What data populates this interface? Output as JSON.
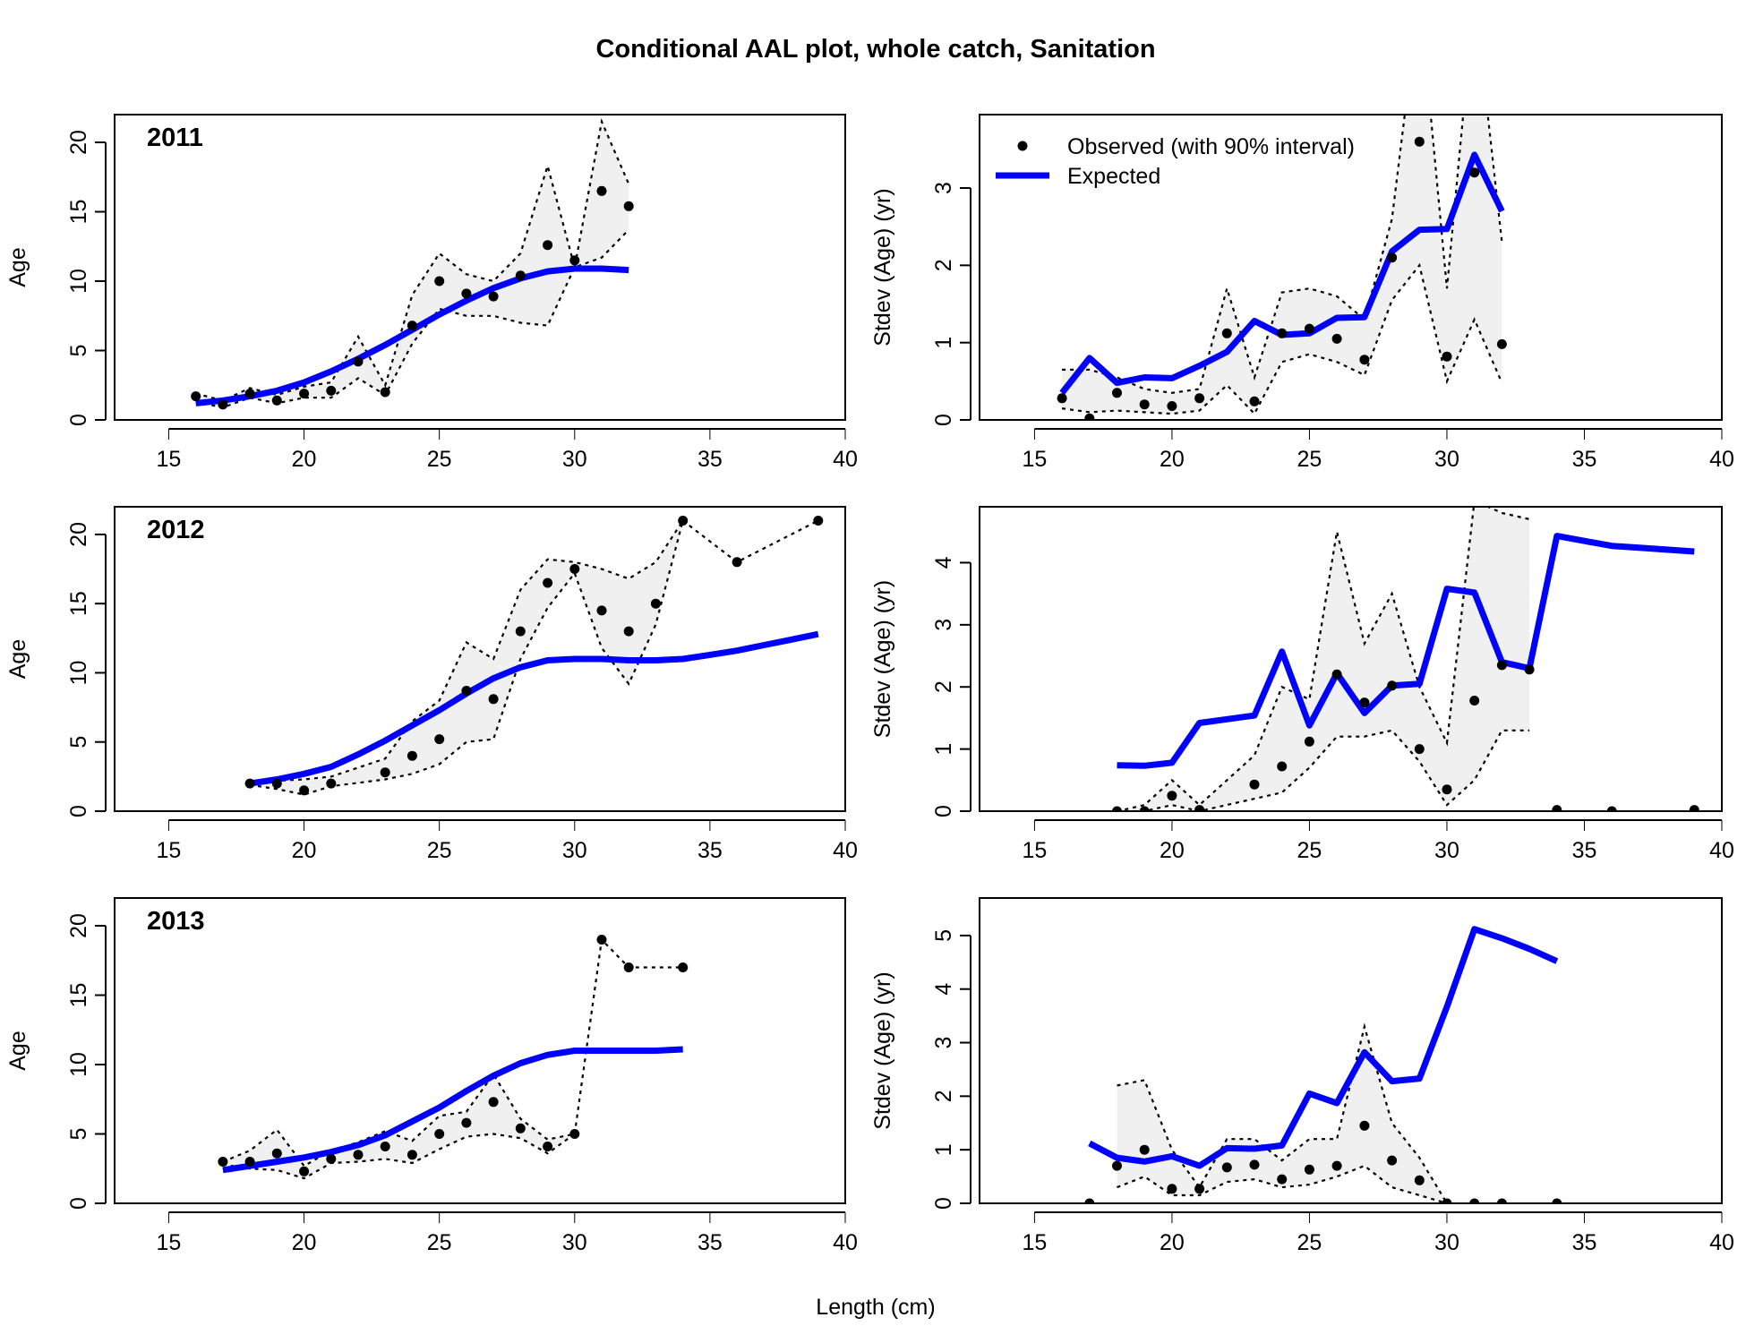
{
  "chart_data": {
    "type": "line",
    "title": "Conditional AAL plot, whole catch, Sanitation",
    "xlabel": "Length (cm)",
    "xlim": [
      13,
      40
    ],
    "xticks": [
      "15",
      "20",
      "25",
      "30",
      "35",
      "40"
    ],
    "legend": {
      "position": "top-left",
      "observed_label": "Observed (with 90% interval)",
      "expected_label": "Expected"
    },
    "colors": {
      "expected": "#0000ff",
      "observed": "#000000",
      "band": "#f0f0f0"
    },
    "panels": [
      {
        "year": "2011",
        "ylabel": "Age",
        "ylim": [
          0,
          22
        ],
        "yticks": [
          "0",
          "5",
          "10",
          "15",
          "20"
        ],
        "show_year": true,
        "show_legend": false,
        "obs_x": [
          16,
          17,
          18,
          19,
          20,
          21,
          22,
          23,
          24,
          25,
          26,
          27,
          28,
          29,
          30,
          31,
          32
        ],
        "obs_y": [
          1.7,
          1.1,
          1.9,
          1.4,
          1.9,
          2.1,
          4.2,
          2.0,
          6.8,
          10.0,
          9.1,
          8.9,
          10.4,
          12.6,
          11.5,
          16.5,
          15.4
        ],
        "band_x": [
          16,
          17,
          18,
          19,
          20,
          21,
          22,
          23,
          24,
          25,
          26,
          27,
          28,
          29,
          30,
          31,
          32
        ],
        "upper": [
          1.9,
          1.4,
          2.3,
          1.8,
          2.4,
          2.7,
          6.0,
          2.5,
          9.0,
          12.0,
          10.5,
          10.0,
          12.0,
          18.3,
          11.0,
          21.5,
          17.0
        ],
        "lower": [
          1.3,
          0.9,
          1.6,
          1.2,
          1.6,
          1.6,
          3.0,
          1.8,
          5.5,
          8.0,
          7.5,
          7.5,
          7.0,
          6.8,
          11.0,
          11.7,
          13.7
        ],
        "exp_x": [
          16,
          17,
          18,
          19,
          20,
          21,
          22,
          23,
          24,
          25,
          26,
          27,
          28,
          29,
          30,
          31,
          32
        ],
        "exp_y": [
          1.2,
          1.4,
          1.7,
          2.1,
          2.7,
          3.5,
          4.4,
          5.4,
          6.5,
          7.6,
          8.6,
          9.5,
          10.2,
          10.7,
          10.9,
          10.9,
          10.8
        ]
      },
      {
        "year": "2011",
        "ylabel": "Stdev (Age) (yr)",
        "ylim": [
          0,
          3.95
        ],
        "yticks": [
          "0",
          "1",
          "2",
          "3"
        ],
        "show_year": false,
        "show_legend": true,
        "obs_x": [
          16,
          17,
          18,
          19,
          20,
          21,
          22,
          23,
          24,
          25,
          26,
          27,
          28,
          29,
          30,
          31,
          32
        ],
        "obs_y": [
          0.28,
          0.02,
          0.35,
          0.2,
          0.18,
          0.28,
          1.12,
          0.24,
          1.12,
          1.18,
          1.05,
          0.78,
          2.1,
          3.6,
          0.82,
          3.2,
          0.98
        ],
        "band_x": [
          16,
          17,
          18,
          19,
          20,
          21,
          22,
          23,
          24,
          25,
          26,
          27,
          28,
          29,
          30,
          31,
          32
        ],
        "upper": [
          0.65,
          0.65,
          0.55,
          0.4,
          0.35,
          0.4,
          1.7,
          0.55,
          1.65,
          1.7,
          1.6,
          1.3,
          2.6,
          5.5,
          1.7,
          5.5,
          2.3
        ],
        "lower": [
          0.15,
          0.1,
          0.12,
          0.1,
          0.08,
          0.12,
          0.45,
          0.08,
          0.75,
          0.85,
          0.75,
          0.58,
          1.55,
          2.0,
          0.5,
          1.3,
          0.48
        ],
        "exp_x": [
          16,
          17,
          18,
          19,
          20,
          21,
          22,
          23,
          24,
          25,
          26,
          27,
          28,
          29,
          30,
          31,
          32
        ],
        "exp_y": [
          0.35,
          0.8,
          0.48,
          0.55,
          0.54,
          0.7,
          0.88,
          1.28,
          1.1,
          1.12,
          1.32,
          1.33,
          2.18,
          2.46,
          2.47,
          3.43,
          2.7
        ]
      },
      {
        "year": "2012",
        "ylabel": "Age",
        "ylim": [
          0,
          22
        ],
        "yticks": [
          "0",
          "5",
          "10",
          "15",
          "20"
        ],
        "show_year": true,
        "show_legend": false,
        "obs_x": [
          18,
          19,
          20,
          21,
          23,
          24,
          25,
          26,
          27,
          28,
          29,
          30,
          31,
          32,
          33,
          34,
          36,
          39
        ],
        "obs_y": [
          2.0,
          2.0,
          1.5,
          2.0,
          2.8,
          4.0,
          5.2,
          8.7,
          8.1,
          13.0,
          16.5,
          17.5,
          14.5,
          13.0,
          15.0,
          21.0,
          18.0,
          21.0
        ],
        "band_x": [
          18,
          19,
          20,
          21,
          23,
          24,
          25,
          26,
          27,
          28,
          29,
          30,
          31,
          32,
          33,
          34
        ],
        "upper": [
          2.1,
          2.2,
          2.3,
          2.5,
          3.8,
          6.5,
          8.0,
          12.2,
          11.0,
          16.0,
          18.2,
          18.0,
          17.5,
          16.8,
          18.0,
          21.0
        ],
        "lower": [
          1.9,
          1.6,
          1.2,
          1.8,
          2.3,
          2.7,
          3.4,
          5.0,
          5.2,
          11.0,
          14.7,
          17.2,
          11.8,
          9.2,
          13.5,
          21.0
        ],
        "line_x": [
          34,
          36,
          39
        ],
        "line_y": [
          21.0,
          18.0,
          21.0
        ],
        "exp_x": [
          18,
          19,
          20,
          21,
          22,
          23,
          24,
          25,
          26,
          27,
          28,
          29,
          30,
          31,
          32,
          33,
          34,
          35,
          36,
          37,
          38,
          39
        ],
        "exp_y": [
          2.0,
          2.3,
          2.7,
          3.2,
          4.1,
          5.1,
          6.2,
          7.3,
          8.5,
          9.6,
          10.4,
          10.9,
          11.0,
          11.0,
          10.9,
          10.9,
          11.0,
          11.3,
          11.6,
          12.0,
          12.4,
          12.8
        ]
      },
      {
        "year": "2012",
        "ylabel": "Stdev (Age) (yr)",
        "ylim": [
          0,
          4.9
        ],
        "yticks": [
          "0",
          "1",
          "2",
          "3",
          "4"
        ],
        "show_year": false,
        "show_legend": false,
        "obs_x": [
          18,
          19,
          20,
          21,
          23,
          24,
          25,
          26,
          27,
          28,
          29,
          30,
          31,
          32,
          33,
          34,
          36,
          39
        ],
        "obs_y": [
          0.0,
          0.0,
          0.25,
          0.02,
          0.43,
          0.72,
          1.12,
          2.2,
          1.75,
          2.02,
          1.0,
          0.35,
          1.78,
          2.35,
          2.28,
          0.02,
          0.0,
          0.02
        ],
        "band_x": [
          18,
          19,
          20,
          21,
          23,
          24,
          25,
          26,
          27,
          28,
          29,
          30,
          31,
          32,
          33
        ],
        "upper": [
          0.0,
          0.1,
          0.5,
          0.1,
          0.9,
          2.0,
          1.8,
          4.5,
          2.7,
          3.5,
          2.0,
          1.1,
          5.0,
          4.8,
          4.7
        ],
        "lower": [
          0.0,
          0.0,
          0.1,
          0.0,
          0.2,
          0.3,
          0.7,
          1.2,
          1.2,
          1.3,
          0.8,
          0.1,
          0.5,
          1.3,
          1.3
        ],
        "exp_x": [
          18,
          19,
          20,
          21,
          22,
          23,
          24,
          25,
          26,
          27,
          28,
          29,
          30,
          31,
          32,
          33,
          34,
          35,
          36,
          37,
          38,
          39
        ],
        "exp_y": [
          0.74,
          0.73,
          0.78,
          1.42,
          1.48,
          1.54,
          2.57,
          1.38,
          2.22,
          1.58,
          2.02,
          2.05,
          3.58,
          3.52,
          2.4,
          2.3,
          4.43,
          4.35,
          4.27,
          4.24,
          4.21,
          4.18
        ]
      },
      {
        "year": "2013",
        "ylabel": "Age",
        "ylim": [
          0,
          22
        ],
        "yticks": [
          "0",
          "5",
          "10",
          "15",
          "20"
        ],
        "show_year": true,
        "show_legend": false,
        "obs_x": [
          17,
          18,
          19,
          20,
          21,
          22,
          23,
          24,
          25,
          26,
          27,
          28,
          29,
          30,
          31,
          32,
          34
        ],
        "obs_y": [
          3.0,
          3.0,
          3.6,
          2.3,
          3.2,
          3.5,
          4.1,
          3.5,
          5.0,
          5.8,
          7.3,
          5.4,
          4.1,
          5.0,
          19.0,
          17.0,
          17.0
        ],
        "band_x": [
          17,
          18,
          19,
          20,
          21,
          22,
          23,
          24,
          25,
          26,
          27,
          28,
          29,
          30
        ],
        "upper": [
          3.0,
          3.8,
          5.3,
          2.7,
          3.8,
          4.4,
          5.2,
          4.5,
          6.3,
          6.6,
          9.3,
          6.1,
          4.6,
          5.0
        ],
        "lower": [
          2.8,
          2.5,
          2.4,
          1.8,
          2.9,
          3.0,
          3.2,
          2.9,
          3.9,
          4.8,
          5.0,
          4.7,
          3.6,
          5.0
        ],
        "line_x": [
          30,
          31,
          32,
          34
        ],
        "line_y": [
          5.0,
          19.0,
          17.0,
          17.0
        ],
        "exp_x": [
          17,
          18,
          19,
          20,
          21,
          22,
          23,
          24,
          25,
          26,
          27,
          28,
          29,
          30,
          31,
          32,
          33,
          34
        ],
        "exp_y": [
          2.4,
          2.7,
          3.0,
          3.3,
          3.7,
          4.2,
          4.9,
          5.9,
          6.9,
          8.1,
          9.2,
          10.1,
          10.7,
          11.0,
          11.0,
          11.0,
          11.0,
          11.1
        ]
      },
      {
        "year": "2013",
        "ylabel": "Stdev (Age) (yr)",
        "ylim": [
          0,
          5.7
        ],
        "yticks": [
          "0",
          "1",
          "2",
          "3",
          "4",
          "5"
        ],
        "show_year": false,
        "show_legend": false,
        "obs_x": [
          17,
          18,
          19,
          20,
          21,
          22,
          23,
          24,
          25,
          26,
          27,
          28,
          29,
          30,
          31,
          32,
          34
        ],
        "obs_y": [
          0.0,
          0.7,
          1.0,
          0.27,
          0.27,
          0.67,
          0.72,
          0.45,
          0.63,
          0.7,
          1.45,
          0.8,
          0.43,
          0.0,
          0.0,
          0.0,
          0.0
        ],
        "band_x": [
          18,
          19,
          20,
          21,
          22,
          23,
          24,
          25,
          26,
          27,
          28,
          29,
          30
        ],
        "upper": [
          2.2,
          2.3,
          1.0,
          0.3,
          1.2,
          1.2,
          0.8,
          1.2,
          1.2,
          3.3,
          1.5,
          0.85,
          0.0
        ],
        "lower": [
          0.3,
          0.5,
          0.15,
          0.15,
          0.4,
          0.45,
          0.3,
          0.35,
          0.5,
          0.7,
          0.3,
          0.15,
          0.0
        ],
        "exp_x": [
          17,
          18,
          19,
          20,
          21,
          22,
          23,
          24,
          25,
          26,
          27,
          28,
          29,
          30,
          31,
          32,
          33,
          34
        ],
        "exp_y": [
          1.12,
          0.85,
          0.78,
          0.88,
          0.7,
          1.03,
          1.02,
          1.08,
          2.05,
          1.87,
          2.82,
          2.28,
          2.33,
          3.67,
          5.12,
          4.95,
          4.75,
          4.52
        ]
      }
    ]
  }
}
